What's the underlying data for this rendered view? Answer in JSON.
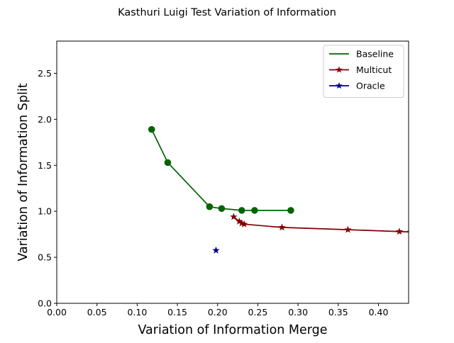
{
  "chart_data": {
    "type": "line",
    "title": "Kasthuri Luigi Test Variation of Information",
    "xlabel": "Variation of Information Merge",
    "ylabel": "Variation of Information Split",
    "xlim": [
      0,
      0.4375
    ],
    "ylim": [
      0,
      2.85
    ],
    "xticks": [
      "0.00",
      "0.05",
      "0.10",
      "0.15",
      "0.20",
      "0.25",
      "0.30",
      "0.35",
      "0.40"
    ],
    "yticks": [
      "0.0",
      "0.5",
      "1.0",
      "1.5",
      "2.0",
      "2.5"
    ],
    "grid": false,
    "legend_position": "top-right",
    "series": [
      {
        "name": "Baseline",
        "color": "#006400",
        "marker": "circle",
        "x": [
          0.118,
          0.138,
          0.19,
          0.205,
          0.23,
          0.246,
          0.291
        ],
        "y": [
          1.89,
          1.53,
          1.05,
          1.03,
          1.01,
          1.01,
          1.01
        ]
      },
      {
        "name": "Multicut",
        "color": "#800000",
        "marker": "star",
        "x": [
          0.22,
          0.227,
          0.23,
          0.233,
          0.28,
          0.362,
          0.426,
          0.44
        ],
        "y": [
          0.94,
          0.89,
          0.87,
          0.86,
          0.825,
          0.8,
          0.78,
          0.775
        ]
      },
      {
        "name": "Oracle",
        "color": "#000080",
        "marker": "star",
        "x": [
          0.198
        ],
        "y": [
          0.575
        ]
      }
    ]
  }
}
